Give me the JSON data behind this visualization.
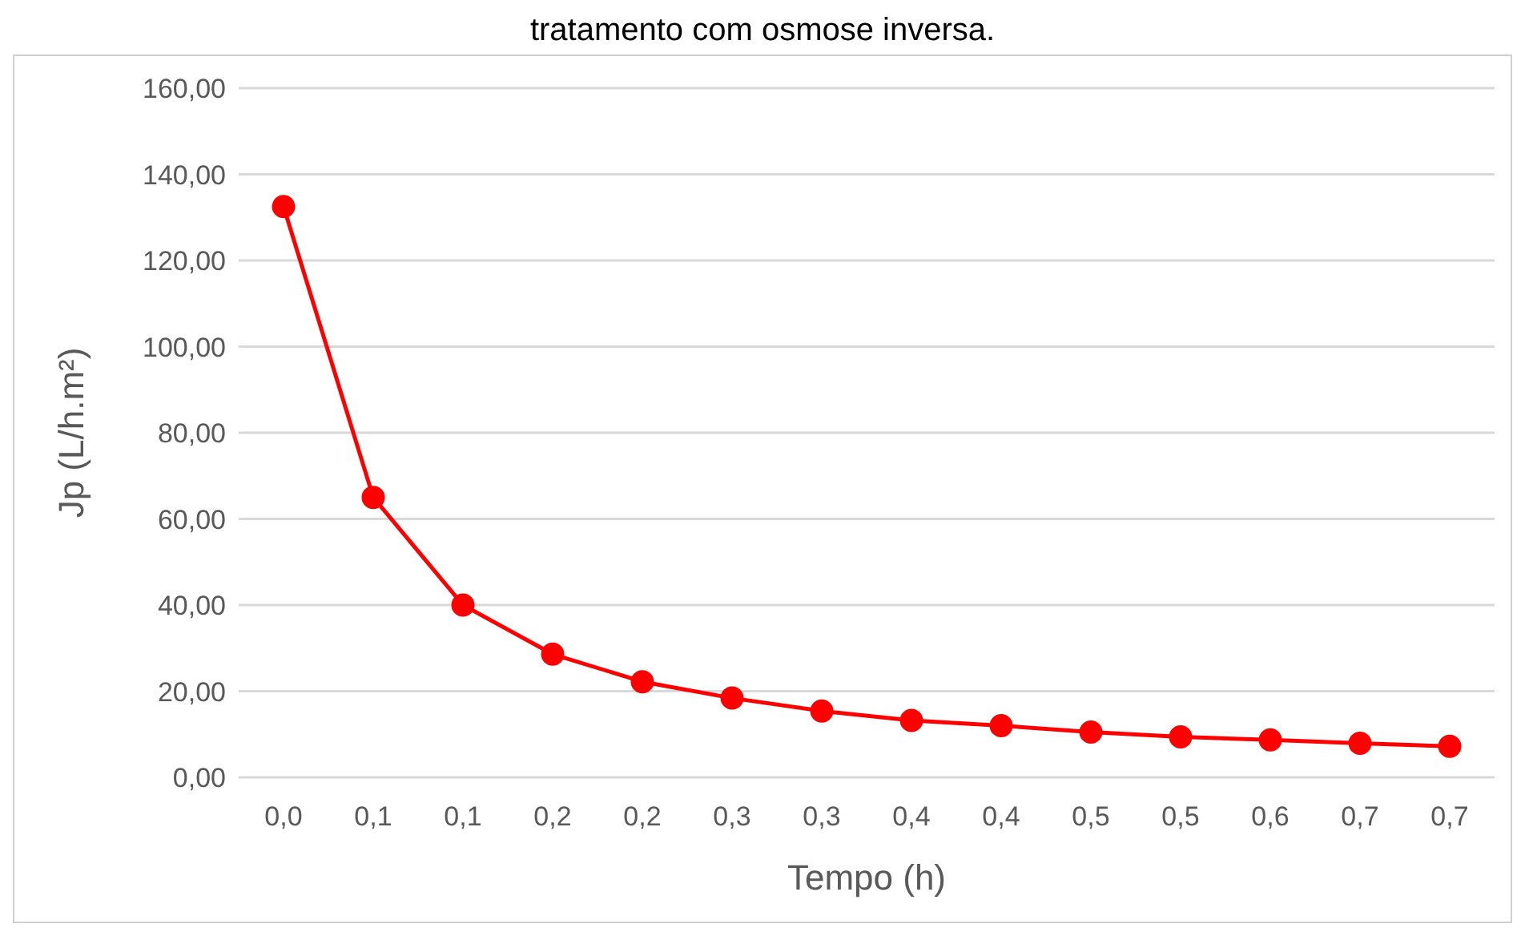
{
  "chart_data": {
    "type": "line",
    "title": "tratamento com osmose inversa.",
    "xlabel": "Tempo (h)",
    "ylabel": "Jp (L/h.m²)",
    "categories": [
      "0,0",
      "0,1",
      "0,1",
      "0,2",
      "0,2",
      "0,3",
      "0,3",
      "0,4",
      "0,4",
      "0,5",
      "0,5",
      "0,6",
      "0,7",
      "0,7"
    ],
    "series": [
      {
        "color": "#ff0000",
        "values": [
          132.5,
          65,
          40,
          28.6,
          22.2,
          18.4,
          15.4,
          13.2,
          12,
          10.5,
          9.4,
          8.7,
          7.9,
          7.2
        ]
      }
    ],
    "ylim": [
      0,
      160
    ],
    "yticks": [
      {
        "value": 0,
        "label": "0,00"
      },
      {
        "value": 20,
        "label": "20,00"
      },
      {
        "value": 40,
        "label": "40,00"
      },
      {
        "value": 60,
        "label": "60,00"
      },
      {
        "value": 80,
        "label": "80,00"
      },
      {
        "value": 100,
        "label": "100,00"
      },
      {
        "value": 120,
        "label": "120,00"
      },
      {
        "value": 140,
        "label": "140,00"
      },
      {
        "value": 160,
        "label": "160,00"
      }
    ],
    "grid": "y",
    "marker": "circle",
    "line_style": "solid",
    "legend": false
  }
}
